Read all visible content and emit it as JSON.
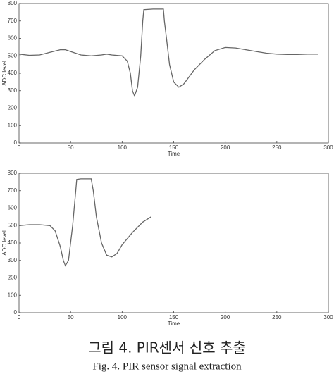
{
  "chart_data": [
    {
      "type": "line",
      "xlabel": "Time",
      "ylabel": "ADC level",
      "color": "#666666",
      "x": [
        0,
        10,
        20,
        30,
        40,
        45,
        50,
        60,
        70,
        80,
        85,
        90,
        100,
        105,
        108,
        110,
        112,
        115,
        118,
        120,
        121,
        130,
        140,
        141,
        143,
        146,
        150,
        155,
        160,
        170,
        180,
        190,
        200,
        210,
        220,
        230,
        240,
        250,
        260,
        270,
        280,
        290
      ],
      "values": [
        510,
        503,
        505,
        520,
        535,
        535,
        525,
        505,
        500,
        505,
        510,
        505,
        500,
        470,
        400,
        300,
        270,
        320,
        500,
        700,
        765,
        768,
        768,
        700,
        600,
        450,
        350,
        320,
        340,
        420,
        480,
        530,
        548,
        545,
        535,
        525,
        515,
        510,
        508,
        508,
        510,
        510
      ],
      "xlim": [
        0,
        300
      ],
      "ylim": [
        0,
        800
      ],
      "xticks": [
        0,
        50,
        100,
        150,
        200,
        250,
        300
      ],
      "yticks": [
        0,
        100,
        200,
        300,
        400,
        500,
        600,
        700,
        800
      ]
    },
    {
      "type": "line",
      "xlabel": "Time",
      "ylabel": "ADC level",
      "color": "#666666",
      "x": [
        0,
        10,
        20,
        30,
        35,
        40,
        43,
        45,
        48,
        52,
        55,
        56,
        60,
        70,
        72,
        75,
        80,
        85,
        90,
        95,
        100,
        110,
        120,
        128
      ],
      "values": [
        500,
        505,
        505,
        500,
        470,
        380,
        300,
        270,
        300,
        500,
        700,
        765,
        768,
        768,
        700,
        550,
        400,
        330,
        320,
        340,
        390,
        460,
        520,
        550
      ],
      "xlim": [
        0,
        300
      ],
      "ylim": [
        0,
        800
      ],
      "xticks": [
        0,
        50,
        100,
        150,
        200,
        250,
        300
      ],
      "yticks": [
        0,
        100,
        200,
        300,
        400,
        500,
        600,
        700,
        800
      ]
    }
  ],
  "caption_ko": "그림 4. PIR센서 신호 추출",
  "caption_en": "Fig. 4.  PIR sensor signal extraction"
}
